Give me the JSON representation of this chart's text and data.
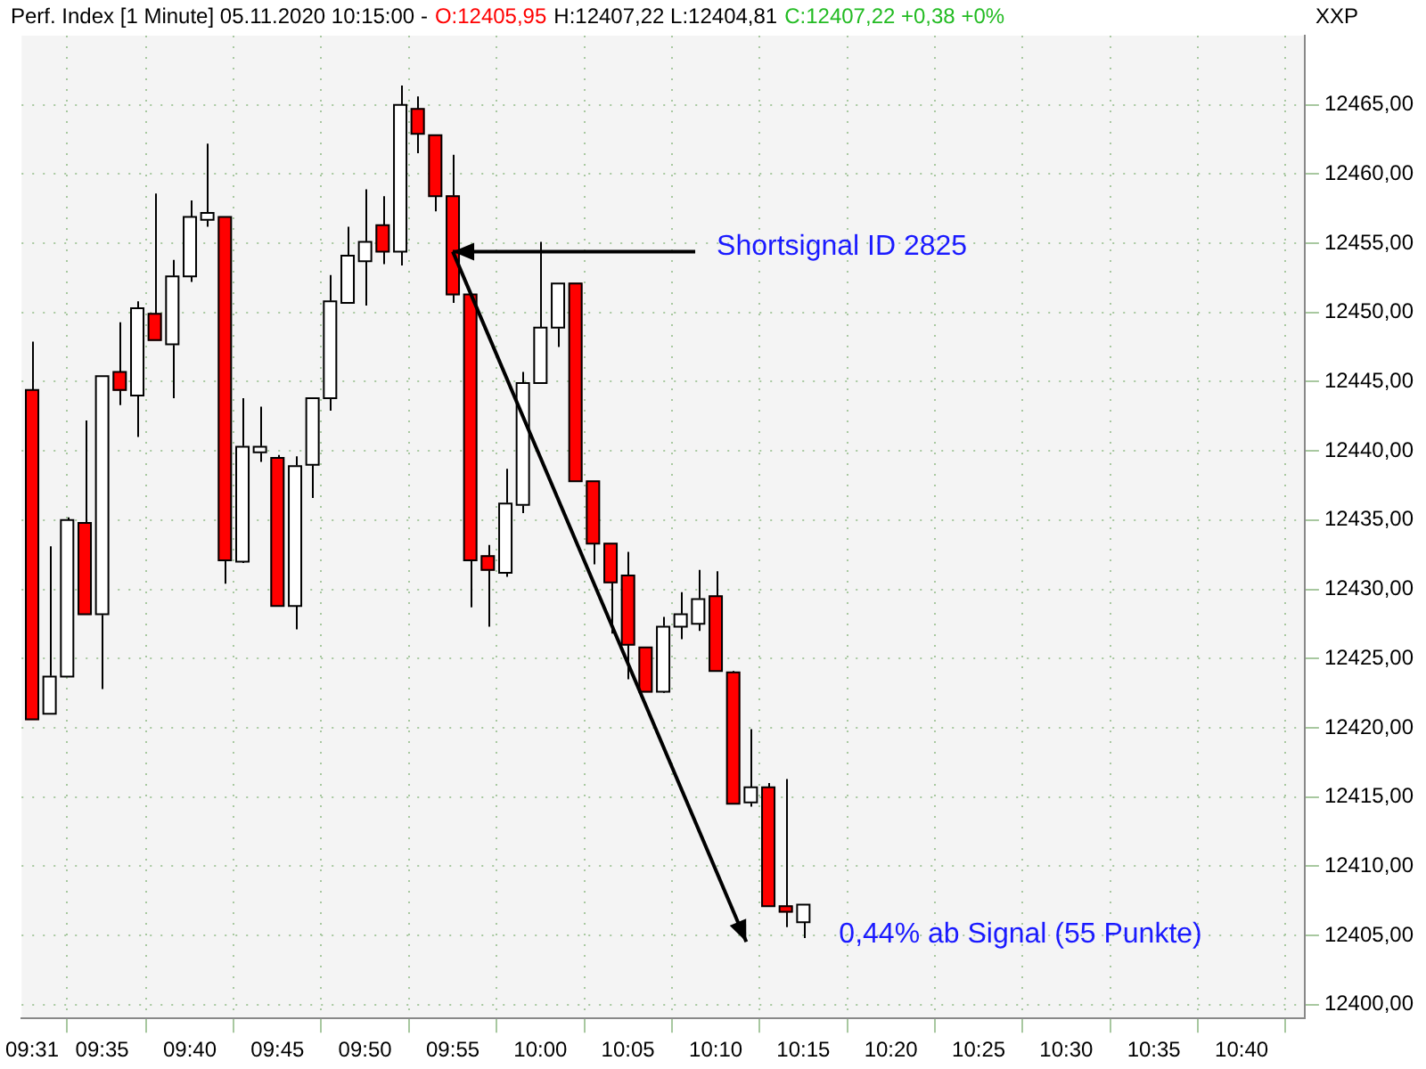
{
  "chart_data": {
    "type": "candlestick",
    "title": "Perf. Index [1 Minute] 05.11.2020 10:15:00 -",
    "ylabel": "XXP",
    "annotations": [
      "O:12405,95",
      "H:12407,22 L:12404,81",
      "C:12407,22 +0,38 +0%",
      {
        "text": "Shortsignal ID 2825",
        "x": 9.9167,
        "y": 12454.4
      },
      "0,44% ab Signal (55 Punkte)"
    ],
    "x": [
      9.5167,
      9.5333,
      9.55,
      9.5667,
      9.5833,
      9.6,
      9.6167,
      9.6333,
      9.65,
      9.6667,
      9.6833,
      9.7,
      9.7167,
      9.7333,
      9.75,
      9.7667,
      9.7833,
      9.8,
      9.8167,
      9.8333,
      9.85,
      9.8667,
      9.8833,
      9.9,
      9.9167,
      9.9333,
      9.95,
      9.9667,
      9.9833,
      10,
      10.0167,
      10.0333,
      10.05,
      10.0667,
      10.0833,
      10.1,
      10.1167,
      10.1333,
      10.15,
      10.1667,
      10.1833,
      10.2,
      10.2167,
      10.2333,
      10.25
    ],
    "ohlc": [
      [
        12444.4,
        12447.9,
        12420.6,
        12420.6
      ],
      [
        12421.0,
        12433.1,
        12421.0,
        12423.7
      ],
      [
        12423.7,
        12435.2,
        12423.7,
        12435.0
      ],
      [
        12434.8,
        12442.2,
        12428.2,
        12428.2
      ],
      [
        12428.2,
        12445.4,
        12422.8,
        12445.4
      ],
      [
        12445.7,
        12449.3,
        12443.3,
        12444.4
      ],
      [
        12444.0,
        12450.8,
        12441.0,
        12450.3
      ],
      [
        12449.9,
        12458.6,
        12448.0,
        12448.0
      ],
      [
        12447.7,
        12453.8,
        12443.8,
        12452.6
      ],
      [
        12452.6,
        12458.1,
        12452.2,
        12456.9
      ],
      [
        12456.7,
        12462.2,
        12456.2,
        12457.2
      ],
      [
        12456.9,
        12456.9,
        12430.4,
        12432.1
      ],
      [
        12432.0,
        12443.8,
        12431.9,
        12440.3
      ],
      [
        12439.9,
        12443.2,
        12439.2,
        12440.3
      ],
      [
        12439.5,
        12439.7,
        12428.8,
        12428.8
      ],
      [
        12428.8,
        12439.6,
        12427.1,
        12438.9
      ],
      [
        12439.0,
        12443.8,
        12436.6,
        12443.8
      ],
      [
        12443.8,
        12452.7,
        12442.9,
        12450.8
      ],
      [
        12450.7,
        12456.2,
        12450.7,
        12454.1
      ],
      [
        12453.7,
        12458.9,
        12450.5,
        12455.1
      ],
      [
        12456.3,
        12458.4,
        12453.5,
        12454.4
      ],
      [
        12454.4,
        12466.4,
        12453.4,
        12465.0
      ],
      [
        12464.7,
        12465.6,
        12461.5,
        12462.9
      ],
      [
        12462.8,
        12462.8,
        12457.3,
        12458.4
      ],
      [
        12458.4,
        12461.4,
        12450.7,
        12451.3
      ],
      [
        12451.3,
        12451.3,
        12428.7,
        12432.1
      ],
      [
        12432.4,
        12433.2,
        12427.3,
        12431.4
      ],
      [
        12431.2,
        12438.7,
        12430.9,
        12436.2
      ],
      [
        12436.1,
        12445.7,
        12435.5,
        12444.9
      ],
      [
        12444.9,
        12455.1,
        12444.9,
        12448.9
      ],
      [
        12448.9,
        12452.1,
        12447.5,
        12452.1
      ],
      [
        12452.1,
        12452.1,
        12437.8,
        12437.8
      ],
      [
        12437.8,
        12437.8,
        12431.8,
        12433.3
      ],
      [
        12433.3,
        12433.3,
        12426.8,
        12430.5
      ],
      [
        12431.0,
        12432.7,
        12423.5,
        12426.0
      ],
      [
        12425.8,
        12425.8,
        12422.6,
        12422.6
      ],
      [
        12422.6,
        12428.0,
        12422.5,
        12427.3
      ],
      [
        12427.3,
        12429.8,
        12426.4,
        12428.2
      ],
      [
        12427.5,
        12431.4,
        12427.0,
        12429.3
      ],
      [
        12429.5,
        12431.3,
        12424.1,
        12424.1
      ],
      [
        12424.0,
        12424.1,
        12414.5,
        12414.5
      ],
      [
        12414.6,
        12419.9,
        12414.3,
        12415.7
      ],
      [
        12415.7,
        12416.0,
        12407.1,
        12407.1
      ],
      [
        12407.1,
        12416.3,
        12405.6,
        12406.7
      ],
      [
        12405.95,
        12407.22,
        12404.81,
        12407.22
      ]
    ],
    "colors": [
      "#ff0000",
      "#ffffff",
      "#ffffff",
      "#ff0000",
      "#ffffff",
      "#ff0000",
      "#ffffff",
      "#ff0000",
      "#ffffff",
      "#ffffff",
      "#ffffff",
      "#ff0000",
      "#ffffff",
      "#ffffff",
      "#ff0000",
      "#ffffff",
      "#ffffff",
      "#ffffff",
      "#ffffff",
      "#ffffff",
      "#ff0000",
      "#ffffff",
      "#ff0000",
      "#ff0000",
      "#ff0000",
      "#ff0000",
      "#ff0000",
      "#ffffff",
      "#ffffff",
      "#ffffff",
      "#ffffff",
      "#ff0000",
      "#ff0000",
      "#ff0000",
      "#ff0000",
      "#ff0000",
      "#ffffff",
      "#ffffff",
      "#ffffff",
      "#ff0000",
      "#ff0000",
      "#ffffff",
      "#ff0000",
      "#ff0000",
      "#ffffff"
    ],
    "xlim": [
      9.5067,
      10.7267
    ],
    "xticks": [
      {
        "value": 9.5167,
        "label": "09:31"
      },
      {
        "value": 9.5833,
        "label": "09:35"
      },
      {
        "value": 9.6667,
        "label": "09:40"
      },
      {
        "value": 9.75,
        "label": "09:45"
      },
      {
        "value": 9.8333,
        "label": "09:50"
      },
      {
        "value": 9.9167,
        "label": "09:55"
      },
      {
        "value": 10,
        "label": "10:00"
      },
      {
        "value": 10.0833,
        "label": "10:05"
      },
      {
        "value": 10.1667,
        "label": "10:10"
      },
      {
        "value": 10.25,
        "label": "10:15"
      },
      {
        "value": 10.3333,
        "label": "10:20"
      },
      {
        "value": 10.4167,
        "label": "10:25"
      },
      {
        "value": 10.5,
        "label": "10:30"
      },
      {
        "value": 10.5833,
        "label": "10:35"
      },
      {
        "value": 10.6667,
        "label": "10:40"
      }
    ],
    "ylim": [
      12399,
      12470
    ],
    "yticks": [
      {
        "value": 12400,
        "label": "12400,00"
      },
      {
        "value": 12405,
        "label": "12405,00"
      },
      {
        "value": 12410,
        "label": "12410,00"
      },
      {
        "value": 12415,
        "label": "12415,00"
      },
      {
        "value": 12420,
        "label": "12420,00"
      },
      {
        "value": 12425,
        "label": "12425,00"
      },
      {
        "value": 12430,
        "label": "12430,00"
      },
      {
        "value": 12435,
        "label": "12435,00"
      },
      {
        "value": 12440,
        "label": "12440,00"
      },
      {
        "value": 12445,
        "label": "12445,00"
      },
      {
        "value": 12450,
        "label": "12450,00"
      },
      {
        "value": 12455,
        "label": "12455,00"
      },
      {
        "value": 12460,
        "label": "12460,00"
      },
      {
        "value": 12465,
        "label": "12465,00"
      }
    ],
    "grid": true
  }
}
